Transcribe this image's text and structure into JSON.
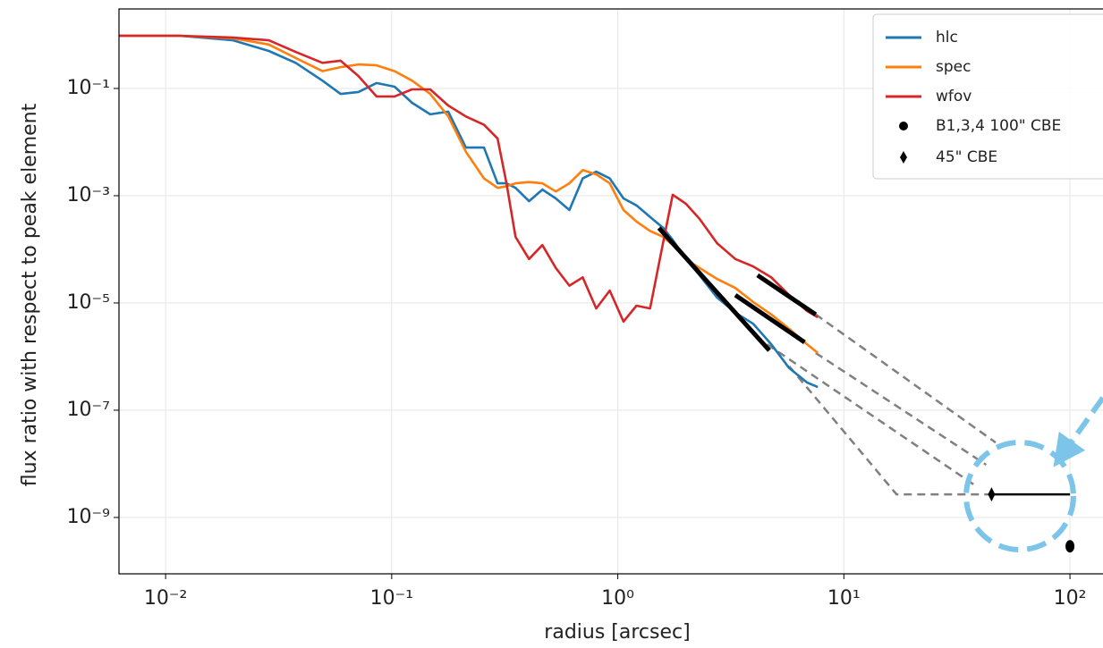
{
  "chart_data": {
    "type": "line",
    "xlabel": "radius [arcsec]",
    "ylabel": "flux ratio with respect to peak element",
    "xscale": "log",
    "yscale": "log",
    "grid": true,
    "legend": "upper right",
    "xlim": [
      0.00622,
      140
    ],
    "ylim": [
      8.9e-11,
      3.04
    ],
    "xticks": [
      {
        "value": 0.01,
        "label": "10⁻²"
      },
      {
        "value": 0.1,
        "label": "10⁻¹"
      },
      {
        "value": 1,
        "label": "10⁰"
      },
      {
        "value": 10,
        "label": "10¹"
      },
      {
        "value": 100,
        "label": "10²"
      }
    ],
    "yticks": [
      {
        "value": 0.1,
        "label": "10⁻¹"
      },
      {
        "value": 0.001,
        "label": "10⁻³"
      },
      {
        "value": 1e-05,
        "label": "10⁻⁵"
      },
      {
        "value": 1e-07,
        "label": "10⁻⁷"
      },
      {
        "value": 1e-09,
        "label": "10⁻⁹"
      }
    ],
    "x": [
      0.00622,
      0.0115,
      0.0199,
      0.0286,
      0.0376,
      0.0494,
      0.0594,
      0.0713,
      0.0857,
      0.103,
      0.123,
      0.148,
      0.178,
      0.213,
      0.256,
      0.294,
      0.322,
      0.353,
      0.405,
      0.464,
      0.532,
      0.611,
      0.7,
      0.803,
      0.921,
      1.06,
      1.21,
      1.39,
      1.59,
      1.75,
      2.0,
      2.3,
      2.75,
      3.31,
      3.97,
      4.77,
      5.73,
      6.87,
      7.67
    ],
    "series": [
      {
        "name": "hlc",
        "color": "#1f77b4",
        "values": [
          0.96,
          0.96,
          0.79,
          0.5,
          0.3,
          0.14,
          0.079,
          0.086,
          0.126,
          0.108,
          0.054,
          0.033,
          0.037,
          0.0079,
          0.0079,
          0.0017,
          0.0017,
          0.0014,
          0.00079,
          0.0013,
          0.00089,
          0.00054,
          0.0021,
          0.0028,
          0.0021,
          0.00089,
          0.00066,
          0.0004,
          0.00025,
          0.00015,
          6.6e-05,
          3.3e-05,
          1.26e-05,
          6.6e-06,
          4.1e-06,
          1.7e-06,
          6.1e-07,
          3.3e-07,
          2.7e-07
        ]
      },
      {
        "name": "spec",
        "color": "#ff7f0e",
        "values": [
          0.96,
          0.96,
          0.86,
          0.66,
          0.37,
          0.21,
          0.25,
          0.28,
          0.27,
          0.21,
          0.14,
          0.079,
          0.03,
          0.0066,
          0.0021,
          0.0014,
          0.0015,
          0.0017,
          0.0018,
          0.0017,
          0.0012,
          0.0017,
          0.003,
          0.0025,
          0.0017,
          0.00054,
          0.00033,
          0.00022,
          0.00017,
          0.00012,
          6.6e-05,
          4.5e-05,
          2.8e-05,
          1.9e-05,
          1.04e-05,
          6.1e-06,
          3.3e-06,
          1.7e-06,
          1.17e-06
        ]
      },
      {
        "name": "wfov",
        "color": "#d62728",
        "values": [
          0.96,
          0.96,
          0.89,
          0.79,
          0.48,
          0.3,
          0.33,
          0.17,
          0.071,
          0.071,
          0.096,
          0.096,
          0.048,
          0.03,
          0.021,
          0.0117,
          0.0017,
          0.00017,
          6.6e-05,
          0.00012,
          4.5e-05,
          2.1e-05,
          3e-05,
          7.9e-06,
          1.7e-05,
          4.5e-06,
          8.9e-06,
          7.9e-06,
          0.00014,
          0.00104,
          0.00071,
          0.00037,
          0.00013,
          6.6e-05,
          4.8e-05,
          3e-05,
          1.4e-05,
          7.1e-06,
          5.4e-06
        ]
      }
    ],
    "fits": [
      {
        "color": "#000000",
        "x": [
          1.52,
          4.68
        ],
        "values": [
          0.00025,
          1.3e-06
        ]
      },
      {
        "color": "#000000",
        "x": [
          3.31,
          6.7
        ],
        "values": [
          1.4e-05,
          1.85e-06
        ]
      },
      {
        "color": "#000000",
        "x": [
          4.15,
          7.5
        ],
        "values": [
          3.3e-05,
          6.1e-06
        ]
      }
    ],
    "extrapolations": [
      {
        "color": "#808080",
        "x": [
          7.5,
          46.9
        ],
        "values": [
          6.1e-06,
          2.5e-08
        ]
      },
      {
        "color": "#808080",
        "x": [
          7.5,
          42.6
        ],
        "values": [
          1.17e-06,
          9.6e-09
        ]
      },
      {
        "color": "#808080",
        "x": [
          4.57,
          39
        ],
        "values": [
          1.7e-06,
          3.7e-09
        ]
      },
      {
        "color": "#808080",
        "x": [
          5.73,
          17.1,
          44.7
        ],
        "values": [
          6.6e-07,
          2.7e-09,
          2.7e-09
        ]
      }
    ],
    "markers": [
      {
        "name": "B1,3,4 100\" CBE",
        "marker": "circle",
        "color": "#000000",
        "x": [
          100
        ],
        "values": [
          2.9e-10
        ]
      },
      {
        "name": "45\" CBE",
        "marker": "diamond",
        "color": "#000000",
        "x": [
          45
        ],
        "values": [
          2.7e-09
        ],
        "x_range": [
          45,
          100
        ]
      }
    ]
  }
}
